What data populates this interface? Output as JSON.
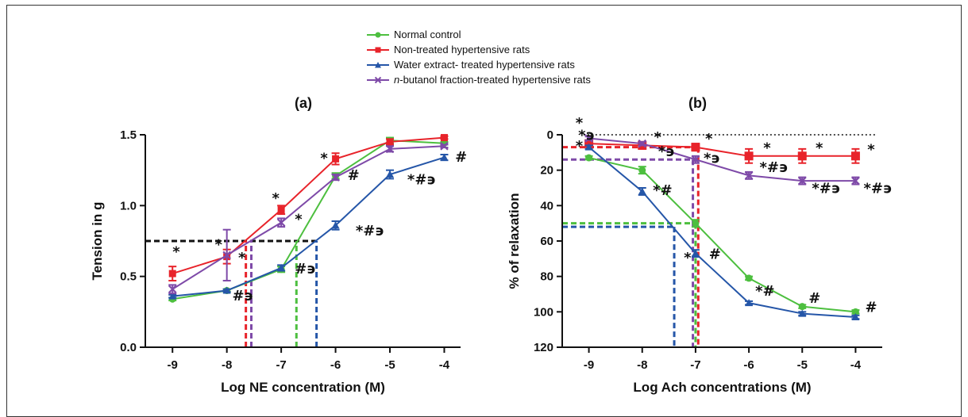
{
  "legend": [
    {
      "label": "Normal control",
      "color": "#4dbf3f",
      "marker": "circle"
    },
    {
      "label": "Non-treated hypertensive rats",
      "color": "#e8232a",
      "marker": "square"
    },
    {
      "label": "Water extract- treated hypertensive rats",
      "color": "#2556a8",
      "marker": "triangle"
    },
    {
      "label_italic": "n",
      "label": "-butanol fraction-treated hypertensive rats",
      "color": "#7e4aa8",
      "marker": "x"
    }
  ],
  "chart_data": [
    {
      "type": "line",
      "panel_label": "(a)",
      "xlabel": "Log NE concentration (M)",
      "ylabel": "Tension in g",
      "xlim": [
        -9.5,
        -3.7
      ],
      "ylim": [
        0,
        1.5
      ],
      "y_reversed": false,
      "x_ticks": [
        -9,
        -8,
        -7,
        -6,
        -5,
        -4
      ],
      "y_ticks": [
        0.0,
        0.5,
        1.0,
        1.5
      ],
      "y_tick_labels": [
        "0.0",
        "0.5",
        "1.0",
        "1.5"
      ],
      "x": [
        -9,
        -8,
        -7,
        -6,
        -5,
        -4
      ],
      "series": [
        {
          "name": "Normal control",
          "color": "#4dbf3f",
          "marker": "circle",
          "values": [
            0.34,
            0.4,
            0.55,
            1.21,
            1.46,
            1.44
          ],
          "errors": [
            0.01,
            0.01,
            0.02,
            0.02,
            0.02,
            0.01
          ]
        },
        {
          "name": "Non-treated hypertensive rats",
          "color": "#e8232a",
          "marker": "square",
          "values": [
            0.52,
            0.64,
            0.97,
            1.33,
            1.45,
            1.48
          ],
          "errors": [
            0.05,
            0.05,
            0.03,
            0.04,
            0.02,
            0.01
          ]
        },
        {
          "name": "Water extract- treated hypertensive rats",
          "color": "#2556a8",
          "marker": "triangle",
          "values": [
            0.36,
            0.4,
            0.56,
            0.86,
            1.22,
            1.34
          ],
          "errors": [
            0.01,
            0.01,
            0.02,
            0.03,
            0.03,
            0.02
          ]
        },
        {
          "name": "n-butanol fraction-treated hypertensive rats",
          "color": "#7e4aa8",
          "marker": "x",
          "values": [
            0.41,
            0.65,
            0.88,
            1.2,
            1.4,
            1.42
          ],
          "errors": [
            0.03,
            0.18,
            0.03,
            0.02,
            0.02,
            0.01
          ]
        }
      ],
      "reference_lines": [
        {
          "kind": "h",
          "color": "#111111",
          "y": 0.75,
          "x_from": -9.5,
          "x_to": -6.35
        },
        {
          "kind": "v",
          "color": "#e8232a",
          "x": -7.65,
          "y_from": 0,
          "y_to": 0.75
        },
        {
          "kind": "v",
          "color": "#7e4aa8",
          "x": -7.55,
          "y_from": 0,
          "y_to": 0.75
        },
        {
          "kind": "v",
          "color": "#4dbf3f",
          "x": -6.72,
          "y_from": 0,
          "y_to": 0.75
        },
        {
          "kind": "v",
          "color": "#2556a8",
          "x": -6.35,
          "y_from": 0,
          "y_to": 0.75
        }
      ],
      "annotations": [
        {
          "text": "*",
          "x": -9,
          "y": 0.64
        },
        {
          "text": "*",
          "x": -8.22,
          "y": 0.69
        },
        {
          "text": "*",
          "x": -7.79,
          "y": 0.6
        },
        {
          "text": "#϶",
          "x": -7.9,
          "y": 0.33
        },
        {
          "text": "*",
          "x": -7.17,
          "y": 1.02
        },
        {
          "text": "*",
          "x": -6.75,
          "y": 0.87
        },
        {
          "text": "#϶",
          "x": -6.75,
          "y": 0.52
        },
        {
          "text": "*",
          "x": -6.28,
          "y": 1.3
        },
        {
          "text": "#",
          "x": -5.78,
          "y": 1.18
        },
        {
          "text": "*#϶",
          "x": -5.63,
          "y": 0.79
        },
        {
          "text": "*#϶",
          "x": -4.68,
          "y": 1.15
        },
        {
          "text": "#",
          "x": -3.8,
          "y": 1.31
        }
      ]
    },
    {
      "type": "line",
      "panel_label": "(b)",
      "xlabel": "Log Ach concentrations (M)",
      "ylabel": "% of relaxation",
      "xlim": [
        -9.5,
        -3.5
      ],
      "ylim": [
        0,
        120
      ],
      "y_reversed": true,
      "x_ticks": [
        -9,
        -8,
        -7,
        -6,
        -5,
        -4
      ],
      "y_ticks": [
        0,
        20,
        40,
        60,
        80,
        100,
        120
      ],
      "y_tick_labels": [
        "0",
        "20",
        "40",
        "60",
        "80",
        "100",
        "120"
      ],
      "x": [
        -9,
        -8,
        -7,
        -6,
        -5,
        -4
      ],
      "series": [
        {
          "name": "Normal control",
          "color": "#4dbf3f",
          "marker": "circle",
          "values": [
            13,
            20,
            50,
            81,
            97,
            100
          ],
          "errors": [
            1,
            2,
            2,
            1,
            1,
            1
          ]
        },
        {
          "name": "Non-treated hypertensive rats",
          "color": "#e8232a",
          "marker": "square",
          "values": [
            5,
            6,
            7,
            12,
            12,
            12
          ],
          "errors": [
            2,
            2,
            2,
            4,
            4,
            4
          ]
        },
        {
          "name": "Water extract- treated hypertensive rats",
          "color": "#2556a8",
          "marker": "triangle",
          "values": [
            7,
            32,
            67,
            95,
            101,
            103
          ],
          "errors": [
            1,
            2,
            2,
            1,
            1,
            1
          ]
        },
        {
          "name": "n-butanol fraction-treated hypertensive rats",
          "color": "#7e4aa8",
          "marker": "x",
          "values": [
            2,
            5,
            14,
            23,
            26,
            26
          ],
          "errors": [
            1,
            1,
            2,
            2,
            2,
            2
          ]
        }
      ],
      "reference_lines": [
        {
          "kind": "h",
          "color": "#111111",
          "y": 0,
          "x_from": -9.1,
          "x_to": -3.6,
          "style": "dotted"
        },
        {
          "kind": "h",
          "color": "#e8232a",
          "y": 7,
          "x_from": -9.5,
          "x_to": -7.0
        },
        {
          "kind": "h",
          "color": "#7e4aa8",
          "y": 14,
          "x_from": -9.5,
          "x_to": -7.05
        },
        {
          "kind": "h",
          "color": "#4dbf3f",
          "y": 50,
          "x_from": -9.5,
          "x_to": -7.0
        },
        {
          "kind": "h",
          "color": "#2556a8",
          "y": 52,
          "x_from": -9.5,
          "x_to": -7.4
        },
        {
          "kind": "v",
          "color": "#7e4aa8",
          "x": -7.05,
          "y_from": 14,
          "y_to": 120
        },
        {
          "kind": "v",
          "color": "#e8232a",
          "x": -6.95,
          "y_from": 7,
          "y_to": 120
        },
        {
          "kind": "v",
          "color": "#4dbf3f",
          "x": -7.0,
          "y_from": 50,
          "y_to": 120
        },
        {
          "kind": "v",
          "color": "#2556a8",
          "x": -7.4,
          "y_from": 52,
          "y_to": 120
        }
      ],
      "annotations": [
        {
          "text": "*",
          "x": -9.25,
          "y": -4
        },
        {
          "text": "*϶",
          "x": -9.2,
          "y": 3
        },
        {
          "text": "*",
          "x": -9.25,
          "y": 9
        },
        {
          "text": "*",
          "x": -7.78,
          "y": 4
        },
        {
          "text": "*϶",
          "x": -7.7,
          "y": 12
        },
        {
          "text": "*",
          "x": -6.82,
          "y": 5
        },
        {
          "text": "*϶",
          "x": -6.85,
          "y": 16
        },
        {
          "text": "*",
          "x": -5.73,
          "y": 10
        },
        {
          "text": "*#϶",
          "x": -5.8,
          "y": 21
        },
        {
          "text": "*",
          "x": -4.75,
          "y": 10
        },
        {
          "text": "*#϶",
          "x": -4.82,
          "y": 33
        },
        {
          "text": "*",
          "x": -3.78,
          "y": 11
        },
        {
          "text": "*#϶",
          "x": -3.85,
          "y": 33
        },
        {
          "text": "*#",
          "x": -7.8,
          "y": 34
        },
        {
          "text": "*",
          "x": -7.22,
          "y": 72
        },
        {
          "text": "#",
          "x": -6.75,
          "y": 70
        },
        {
          "text": "*#",
          "x": -5.88,
          "y": 91
        },
        {
          "text": "#",
          "x": -4.88,
          "y": 95
        },
        {
          "text": "#",
          "x": -3.82,
          "y": 100
        }
      ]
    }
  ]
}
